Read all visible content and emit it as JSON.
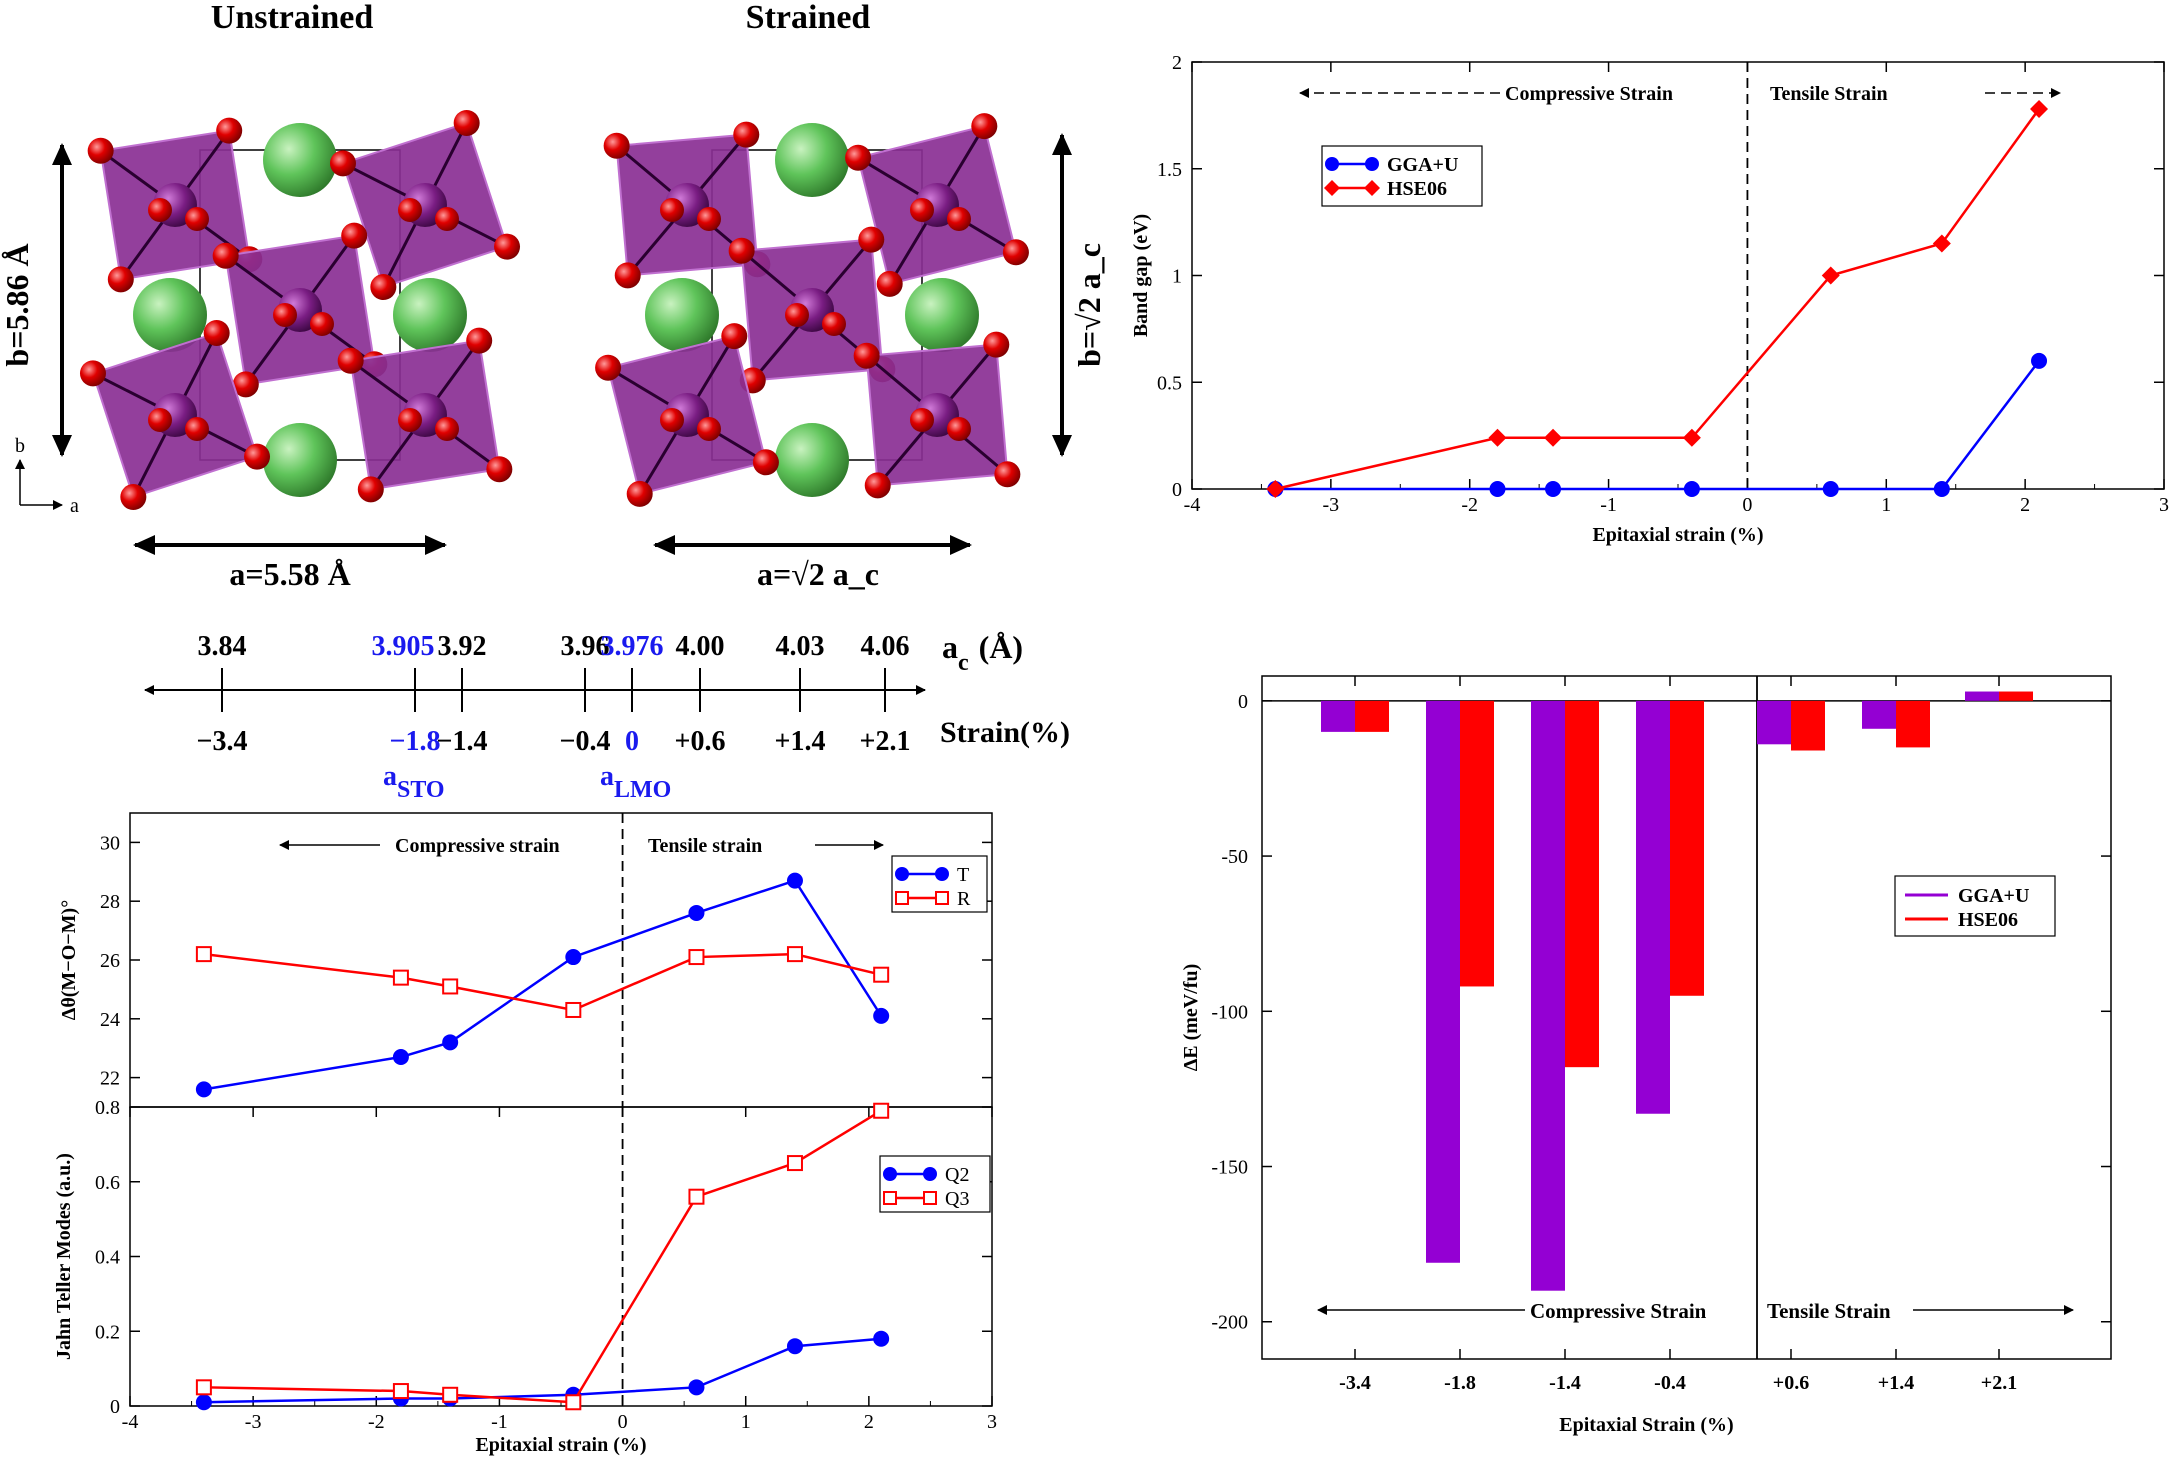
{
  "structures": {
    "unstrained": {
      "title": "Unstrained",
      "a_label": "a=5.58 Å",
      "b_label": "b=5.86 Å"
    },
    "strained": {
      "title": "Strained",
      "a_label": "a=√2 a_c",
      "b_label": "b=√2 a_c"
    },
    "axes_labels": {
      "b": "b",
      "a": "a"
    },
    "colors": {
      "octahedron": "#8a2f94",
      "oxygen": "#e00000",
      "cation": "#5fc45a"
    }
  },
  "strain_scale": {
    "ac_label": "a",
    "ac_sub": "c",
    "ac_unit": "(Å)",
    "strain_label": "Strain(%)",
    "ticks": [
      {
        "ac": "3.84",
        "strain": "−3.4",
        "highlight": false
      },
      {
        "ac": "3.905",
        "strain": "−1.8",
        "highlight": true,
        "ref": "a",
        "ref_sub": "STO"
      },
      {
        "ac": "3.92",
        "strain": "−1.4",
        "highlight": false
      },
      {
        "ac": "3.96",
        "strain": "−0.4",
        "highlight": false
      },
      {
        "ac": "3.976",
        "strain": "0",
        "highlight": true,
        "ref": "a",
        "ref_sub": "LMO"
      },
      {
        "ac": "4.00",
        "strain": "+0.6",
        "highlight": false
      },
      {
        "ac": "4.03",
        "strain": "+1.4",
        "highlight": false
      },
      {
        "ac": "4.06",
        "strain": "+2.1",
        "highlight": false
      }
    ]
  },
  "chart_data": [
    {
      "id": "band-gap",
      "type": "line",
      "xlabel": "Epitaxial strain (%)",
      "ylabel": "Band gap (eV)",
      "xlim": [
        -4,
        3
      ],
      "ylim": [
        0,
        2
      ],
      "xticks": [
        "-4",
        "-3",
        "-2",
        "-1",
        "0",
        "1",
        "2",
        "3"
      ],
      "yticks": [
        "0",
        "0.5",
        "1",
        "1.5",
        "2"
      ],
      "annotations": {
        "left": "Compressive Strain",
        "right": "Tensile Strain"
      },
      "legend_position": "top-left",
      "series": [
        {
          "name": "GGA+U",
          "color": "#0000ff",
          "marker": "circle",
          "x": [
            -3.4,
            -1.8,
            -1.4,
            -0.4,
            0.6,
            1.4,
            2.1
          ],
          "y": [
            0,
            0,
            0,
            0,
            0,
            0,
            0.6
          ]
        },
        {
          "name": "HSE06",
          "color": "#ff0000",
          "marker": "diamond",
          "x": [
            -3.4,
            -1.8,
            -1.4,
            -0.4,
            0.6,
            1.4,
            2.1
          ],
          "y": [
            0,
            0.24,
            0.24,
            0.24,
            1.0,
            1.15,
            1.78
          ]
        }
      ]
    },
    {
      "id": "octahedral-rotation",
      "type": "line",
      "xlabel": "",
      "ylabel": "Δθ(M−O−M)°",
      "xlim": [
        -4,
        3
      ],
      "ylim": [
        21,
        31
      ],
      "yticks": [
        "22",
        "24",
        "26",
        "28",
        "30"
      ],
      "annotations": {
        "left": "Compressive strain",
        "right": "Tensile strain"
      },
      "legend_position": "top-right",
      "series": [
        {
          "name": "T",
          "color": "#0000ff",
          "marker": "circle",
          "x": [
            -3.4,
            -1.8,
            -1.4,
            -0.4,
            0.6,
            1.4,
            2.1
          ],
          "y": [
            21.6,
            22.7,
            23.2,
            26.1,
            27.6,
            28.7,
            24.1
          ]
        },
        {
          "name": "R",
          "color": "#ff0000",
          "marker": "square",
          "x": [
            -3.4,
            -1.8,
            -1.4,
            -0.4,
            0.6,
            1.4,
            2.1
          ],
          "y": [
            26.2,
            25.4,
            25.1,
            24.3,
            26.1,
            26.2,
            25.5
          ]
        }
      ]
    },
    {
      "id": "jahn-teller",
      "type": "line",
      "xlabel": "Epitaxial strain (%)",
      "ylabel": "Jahn Teller Modes (a.u.)",
      "xlim": [
        -4,
        3
      ],
      "ylim": [
        0,
        0.8
      ],
      "xticks": [
        "-4",
        "-3",
        "-2",
        "-1",
        "0",
        "1",
        "2",
        "3"
      ],
      "yticks": [
        "0",
        "0.2",
        "0.4",
        "0.6",
        "0.8"
      ],
      "legend_position": "right",
      "series": [
        {
          "name": "Q2",
          "color": "#0000ff",
          "marker": "circle",
          "x": [
            -3.4,
            -1.8,
            -1.4,
            -0.4,
            0.6,
            1.4,
            2.1
          ],
          "y": [
            0.01,
            0.02,
            0.02,
            0.03,
            0.05,
            0.16,
            0.18
          ]
        },
        {
          "name": "Q3",
          "color": "#ff0000",
          "marker": "square",
          "x": [
            -3.4,
            -1.8,
            -1.4,
            -0.4,
            0.6,
            1.4,
            2.1
          ],
          "y": [
            0.05,
            0.04,
            0.03,
            0.01,
            0.56,
            0.65,
            0.79
          ]
        }
      ]
    },
    {
      "id": "energy-difference",
      "type": "bar",
      "xlabel": "Epitaxial Strain (%)",
      "ylabel": "ΔE (meV/fu)",
      "ylim": [
        -212,
        8
      ],
      "yticks": [
        "0",
        "-50",
        "-100",
        "-150",
        "-200"
      ],
      "categories": [
        "-3.4",
        "-1.8",
        "-1.4",
        "-0.4",
        "+0.6",
        "+1.4",
        "+2.1"
      ],
      "annotations": {
        "left": "Compressive Strain",
        "right": "Tensile Strain"
      },
      "legend_position": "right",
      "series": [
        {
          "name": "GGA+U",
          "color": "#9400d3",
          "values": [
            -10,
            -181,
            -190,
            -133,
            -14,
            -9,
            3
          ]
        },
        {
          "name": "HSE06",
          "color": "#ff0000",
          "values": [
            -10,
            -92,
            -118,
            -95,
            -16,
            -15,
            3
          ]
        }
      ]
    }
  ]
}
